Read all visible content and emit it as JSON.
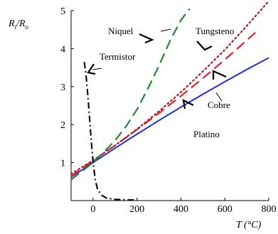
{
  "chart_data": {
    "type": "line",
    "ylabel": "R_t/R_o",
    "xlabel": "T (°C)",
    "xlim": [
      -100,
      800
    ],
    "ylim": [
      0,
      5
    ],
    "xticks": [
      0,
      200,
      400,
      600,
      800
    ],
    "xtick_labels": [
      "0",
      "200",
      "400",
      "600",
      "800"
    ],
    "yticks": [
      1,
      2,
      3,
      4,
      5
    ],
    "ytick_labels": [
      "1",
      "2",
      "3",
      "4",
      "5"
    ],
    "grid": false,
    "series": [
      {
        "name": "Platino",
        "color": "#1f2fd8",
        "style": "solid",
        "x": [
          -100,
          0,
          100,
          200,
          300,
          400,
          500,
          600,
          700,
          800
        ],
        "y": [
          0.62,
          1.0,
          1.38,
          1.75,
          2.11,
          2.46,
          2.8,
          3.13,
          3.45,
          3.76
        ]
      },
      {
        "name": "Cobre",
        "color": "#e8212a",
        "style": "dashed",
        "x": [
          -100,
          0,
          100,
          200,
          300,
          400,
          500,
          600,
          700,
          750
        ],
        "y": [
          0.64,
          1.05,
          1.45,
          1.87,
          2.3,
          2.75,
          3.22,
          3.71,
          4.22,
          4.48
        ]
      },
      {
        "name": "Tungsteno",
        "color": "#b0182e",
        "style": "dotted",
        "x": [
          -100,
          0,
          100,
          200,
          300,
          400,
          500,
          600,
          700,
          800
        ],
        "y": [
          0.7,
          1.06,
          1.45,
          1.88,
          2.35,
          2.85,
          3.4,
          3.97,
          4.6,
          5.25
        ]
      },
      {
        "name": "Níquel",
        "color": "#1e8a2e",
        "style": "dashed",
        "x": [
          -100,
          0,
          50,
          100,
          150,
          200,
          250,
          300,
          350,
          400,
          440
        ],
        "y": [
          0.55,
          1.0,
          1.28,
          1.58,
          1.95,
          2.4,
          2.95,
          3.55,
          4.2,
          4.75,
          5.05
        ]
      },
      {
        "name": "Termistor",
        "color": "#111111",
        "style": "dashdot",
        "x": [
          -40,
          -30,
          -20,
          -10,
          0,
          10,
          20,
          40,
          60,
          100,
          150,
          200
        ],
        "y": [
          3.65,
          3.2,
          2.5,
          1.7,
          1.0,
          0.55,
          0.3,
          0.14,
          0.07,
          0.03,
          0.02,
          0.015
        ]
      }
    ],
    "annotations": [
      {
        "text": "Niquel",
        "series": "Níquel"
      },
      {
        "text": "Tungsteno",
        "series": "Tungsteno"
      },
      {
        "text": "Termistor",
        "series": "Termistor"
      },
      {
        "text": "Cobre",
        "series": "Cobre"
      },
      {
        "text": "Platino",
        "series": "Platino"
      }
    ]
  }
}
